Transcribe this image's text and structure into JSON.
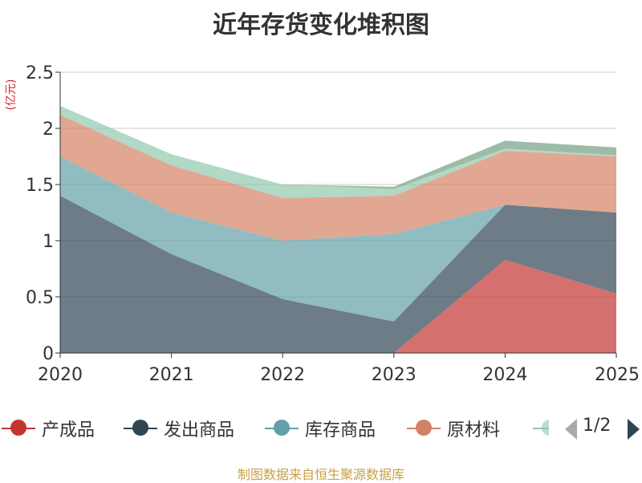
{
  "title": "近年存货变化堆积图",
  "source_note": "制图数据来自恒生聚源数据库",
  "pager": {
    "text": "1/2"
  },
  "colors": {
    "finished_goods": "#c23531",
    "goods_shipped": "#2f4554",
    "goods_in_stock": "#61a0a8",
    "raw_materials": "#d48265",
    "fifth_series": "#91c7ae"
  },
  "chart_data": {
    "type": "area",
    "stacked": true,
    "categories": [
      "2020",
      "2021",
      "2022",
      "2023",
      "2024",
      "2025"
    ],
    "ylabel": "(亿元)",
    "ylim": [
      0,
      2.5
    ],
    "yticks": [
      "0",
      "0.5",
      "1",
      "1.5",
      "2",
      "2.5"
    ],
    "grid": true,
    "legend_position": "bottom",
    "series": [
      {
        "name": "产成品",
        "color": "#c23531",
        "values": [
          0,
          0,
          0,
          0,
          0.83,
          0.53
        ]
      },
      {
        "name": "发出商品",
        "color": "#2f4554",
        "values": [
          1.4,
          0.88,
          0.48,
          0.28,
          0.49,
          0.72
        ]
      },
      {
        "name": "库存商品",
        "color": "#61a0a8",
        "values": [
          0.35,
          0.37,
          0.52,
          0.78,
          0,
          0
        ]
      },
      {
        "name": "原材料",
        "color": "#d48265",
        "values": [
          0.37,
          0.42,
          0.38,
          0.34,
          0.48,
          0.5
        ]
      },
      {
        "name": "",
        "color": "#91c7ae",
        "values": [
          0.08,
          0.1,
          0.12,
          0.06,
          0.02,
          0.01
        ]
      },
      {
        "name": "",
        "color": "#749f83",
        "values": [
          0,
          0,
          0,
          0.02,
          0.07,
          0.07
        ]
      }
    ]
  }
}
